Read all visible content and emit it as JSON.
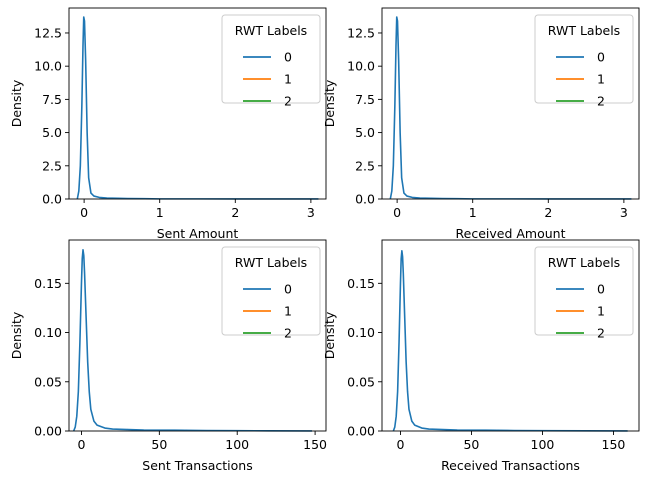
{
  "chart_data": [
    {
      "type": "line",
      "xlabel": "Sent Amount",
      "ylabel": "Density",
      "xlim": [
        -0.2,
        3.2
      ],
      "ylim": [
        0,
        14.38
      ],
      "xticks": [
        0,
        1,
        2,
        3
      ],
      "yticks": [
        0.0,
        2.5,
        5.0,
        7.5,
        10.0,
        12.5
      ],
      "ytick_labels": [
        "0.0",
        "2.5",
        "5.0",
        "7.5",
        "10.0",
        "12.5"
      ],
      "legend": {
        "title": "RWT Labels",
        "placement": "top-right",
        "entries": [
          "0",
          "1",
          "2"
        ]
      },
      "series": [
        {
          "name": "0",
          "color": "#1f77b4",
          "points": [
            [
              -0.09,
              0
            ],
            [
              -0.07,
              0.6
            ],
            [
              -0.05,
              2.5
            ],
            [
              -0.03,
              7.0
            ],
            [
              -0.015,
              11.5
            ],
            [
              -0.005,
              13.7
            ],
            [
              0.005,
              13.4
            ],
            [
              0.02,
              10.5
            ],
            [
              0.04,
              5.0
            ],
            [
              0.06,
              1.6
            ],
            [
              0.09,
              0.45
            ],
            [
              0.13,
              0.22
            ],
            [
              0.2,
              0.12
            ],
            [
              0.3,
              0.07
            ],
            [
              0.45,
              0.05
            ],
            [
              0.6,
              0.03
            ],
            [
              0.8,
              0.02
            ],
            [
              1.0,
              0.01
            ],
            [
              1.5,
              0.01
            ],
            [
              2.0,
              0.005
            ],
            [
              2.5,
              0.003
            ],
            [
              3.1,
              0.002
            ]
          ]
        },
        {
          "name": "1",
          "color": "#ff7f0e",
          "points": []
        },
        {
          "name": "2",
          "color": "#2ca02c",
          "points": []
        }
      ]
    },
    {
      "type": "line",
      "xlabel": "Received Amount",
      "ylabel": "Density",
      "xlim": [
        -0.2,
        3.2
      ],
      "ylim": [
        0,
        14.38
      ],
      "xticks": [
        0,
        1,
        2,
        3
      ],
      "yticks": [
        0.0,
        2.5,
        5.0,
        7.5,
        10.0,
        12.5
      ],
      "ytick_labels": [
        "0.0",
        "2.5",
        "5.0",
        "7.5",
        "10.0",
        "12.5"
      ],
      "legend": {
        "title": "RWT Labels",
        "placement": "top-right",
        "entries": [
          "0",
          "1",
          "2"
        ]
      },
      "series": [
        {
          "name": "0",
          "color": "#1f77b4",
          "points": [
            [
              -0.09,
              0
            ],
            [
              -0.07,
              0.6
            ],
            [
              -0.05,
              2.5
            ],
            [
              -0.03,
              7.0
            ],
            [
              -0.015,
              11.5
            ],
            [
              -0.005,
              13.7
            ],
            [
              0.005,
              13.4
            ],
            [
              0.02,
              10.5
            ],
            [
              0.04,
              5.0
            ],
            [
              0.06,
              1.6
            ],
            [
              0.09,
              0.45
            ],
            [
              0.13,
              0.22
            ],
            [
              0.2,
              0.12
            ],
            [
              0.3,
              0.07
            ],
            [
              0.45,
              0.05
            ],
            [
              0.6,
              0.03
            ],
            [
              0.8,
              0.02
            ],
            [
              1.0,
              0.01
            ],
            [
              1.5,
              0.01
            ],
            [
              2.0,
              0.005
            ],
            [
              2.5,
              0.003
            ],
            [
              3.1,
              0.002
            ]
          ]
        },
        {
          "name": "1",
          "color": "#ff7f0e",
          "points": []
        },
        {
          "name": "2",
          "color": "#2ca02c",
          "points": []
        }
      ]
    },
    {
      "type": "line",
      "xlabel": "Sent Transactions",
      "ylabel": "Density",
      "xlim": [
        -8,
        157
      ],
      "ylim": [
        0,
        0.194
      ],
      "xticks": [
        0,
        50,
        100,
        150
      ],
      "yticks": [
        0.0,
        0.05,
        0.1,
        0.15
      ],
      "ytick_labels": [
        "0.00",
        "0.05",
        "0.10",
        "0.15"
      ],
      "legend": {
        "title": "RWT Labels",
        "placement": "top-right",
        "entries": [
          "0",
          "1",
          "2"
        ]
      },
      "series": [
        {
          "name": "0",
          "color": "#1f77b4",
          "points": [
            [
              -5,
              0
            ],
            [
              -4,
              0.004
            ],
            [
              -3,
              0.015
            ],
            [
              -2,
              0.04
            ],
            [
              -1,
              0.09
            ],
            [
              0,
              0.15
            ],
            [
              0.5,
              0.175
            ],
            [
              1,
              0.184
            ],
            [
              1.5,
              0.178
            ],
            [
              2,
              0.16
            ],
            [
              3,
              0.115
            ],
            [
              4,
              0.07
            ],
            [
              5,
              0.04
            ],
            [
              6,
              0.022
            ],
            [
              8,
              0.01
            ],
            [
              10,
              0.006
            ],
            [
              15,
              0.003
            ],
            [
              20,
              0.002
            ],
            [
              30,
              0.0015
            ],
            [
              40,
              0.001
            ],
            [
              60,
              0.0008
            ],
            [
              80,
              0.0005
            ],
            [
              100,
              0.0003
            ],
            [
              120,
              0.0002
            ],
            [
              148,
              0.0001
            ]
          ]
        },
        {
          "name": "1",
          "color": "#ff7f0e",
          "points": []
        },
        {
          "name": "2",
          "color": "#2ca02c",
          "points": []
        }
      ]
    },
    {
      "type": "line",
      "xlabel": "Received Transactions",
      "ylabel": "Density",
      "xlim": [
        -13,
        168
      ],
      "ylim": [
        0,
        0.194
      ],
      "xticks": [
        0,
        50,
        100,
        150
      ],
      "yticks": [
        0.0,
        0.05,
        0.1,
        0.15
      ],
      "ytick_labels": [
        "0.00",
        "0.05",
        "0.10",
        "0.15"
      ],
      "legend": {
        "title": "RWT Labels",
        "placement": "top-right",
        "entries": [
          "0",
          "1",
          "2"
        ]
      },
      "series": [
        {
          "name": "0",
          "color": "#1f77b4",
          "points": [
            [
              -5,
              0
            ],
            [
              -4,
              0.004
            ],
            [
              -3,
              0.015
            ],
            [
              -2,
              0.04
            ],
            [
              -1,
              0.09
            ],
            [
              0,
              0.15
            ],
            [
              0.5,
              0.175
            ],
            [
              1,
              0.183
            ],
            [
              1.5,
              0.177
            ],
            [
              2,
              0.16
            ],
            [
              3,
              0.115
            ],
            [
              4,
              0.07
            ],
            [
              5,
              0.04
            ],
            [
              6,
              0.022
            ],
            [
              8,
              0.01
            ],
            [
              10,
              0.006
            ],
            [
              15,
              0.003
            ],
            [
              20,
              0.002
            ],
            [
              30,
              0.0015
            ],
            [
              40,
              0.001
            ],
            [
              60,
              0.0008
            ],
            [
              80,
              0.0005
            ],
            [
              100,
              0.0003
            ],
            [
              130,
              0.0002
            ],
            [
              160,
              0.0001
            ]
          ]
        },
        {
          "name": "1",
          "color": "#ff7f0e",
          "points": []
        },
        {
          "name": "2",
          "color": "#2ca02c",
          "points": []
        }
      ]
    }
  ]
}
